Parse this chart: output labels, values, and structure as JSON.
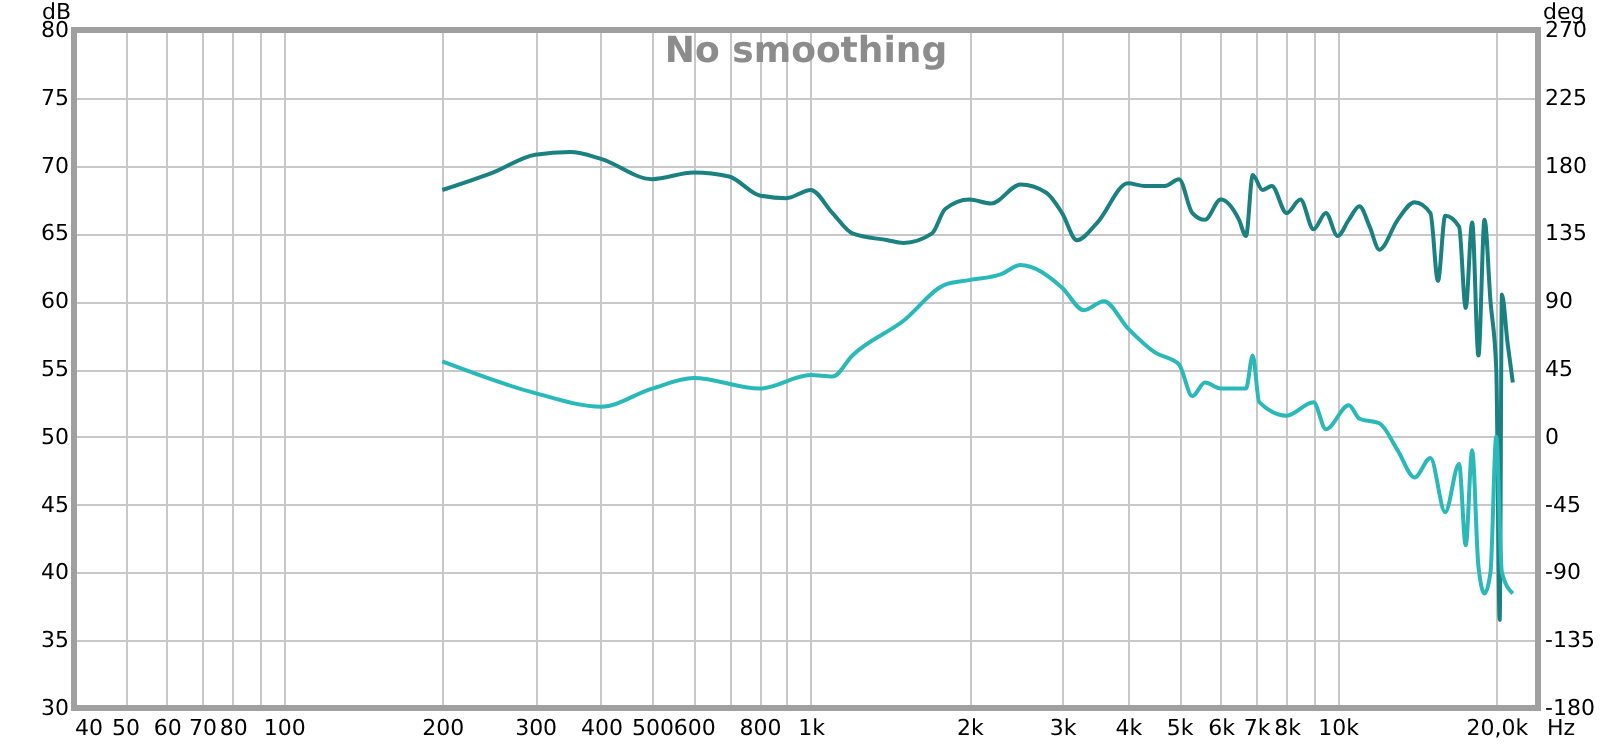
{
  "chart_data": {
    "type": "line",
    "title": "No smoothing",
    "xlabel": "Hz",
    "ylabel": "dB",
    "y2label": "deg",
    "log": "x",
    "grid": true,
    "marker": "none",
    "line_style": "solid",
    "xlim": [
      40,
      24000
    ],
    "xticks": [
      40,
      50,
      60,
      70,
      80,
      {
        "value": 90,
        "label": null
      },
      100,
      200,
      300,
      400,
      500,
      600,
      {
        "value": 700,
        "label": null
      },
      800,
      {
        "value": 900,
        "label": null
      },
      {
        "value": 1000,
        "label": "1k"
      },
      {
        "value": 2000,
        "label": "2k"
      },
      {
        "value": 3000,
        "label": "3k"
      },
      {
        "value": 4000,
        "label": "4k"
      },
      {
        "value": 5000,
        "label": "5k"
      },
      {
        "value": 6000,
        "label": "6k"
      },
      {
        "value": 7000,
        "label": "7k"
      },
      {
        "value": 8000,
        "label": "8k"
      },
      {
        "value": 9000,
        "label": null
      },
      {
        "value": 10000,
        "label": "10k"
      },
      {
        "value": 20000,
        "label": "20,0k"
      }
    ],
    "ylim": [
      30,
      80
    ],
    "yticks": [
      30,
      35,
      40,
      45,
      50,
      55,
      60,
      65,
      70,
      75,
      80
    ],
    "y2lim": [
      -180,
      270
    ],
    "y2ticks": [
      -180,
      -135,
      -90,
      -45,
      0,
      45,
      90,
      135,
      180,
      225,
      270
    ],
    "series": [
      {
        "color": "#1a8080",
        "x": [
          200,
          250,
          300,
          350,
          400,
          500,
          600,
          700,
          800,
          900,
          1000,
          1100,
          1200,
          1400,
          1500,
          1700,
          1800,
          2000,
          2200,
          2500,
          2800,
          3000,
          3200,
          3500,
          4000,
          4300,
          4700,
          5000,
          5300,
          5600,
          6000,
          6500,
          6700,
          6900,
          7200,
          7500,
          8000,
          8500,
          9000,
          9500,
          10000,
          10500,
          11000,
          11500,
          12000,
          13000,
          14000,
          15000,
          15500,
          16000,
          17000,
          17500,
          18000,
          18500,
          19000,
          19500,
          20000,
          20300,
          20500,
          21000,
          21500
        ],
        "values": [
          68.2,
          69.5,
          70.8,
          71.0,
          70.5,
          69.0,
          69.5,
          69.2,
          67.8,
          67.6,
          68.2,
          66.5,
          65.0,
          64.5,
          64.3,
          65.0,
          66.8,
          67.5,
          67.2,
          68.6,
          68.0,
          66.5,
          64.5,
          65.8,
          68.7,
          68.5,
          68.5,
          69.0,
          66.5,
          66.0,
          67.5,
          66.0,
          64.8,
          69.3,
          68.2,
          68.5,
          66.5,
          67.5,
          65.3,
          66.5,
          64.8,
          66.0,
          67.0,
          65.5,
          63.8,
          66.0,
          67.3,
          66.5,
          61.5,
          66.3,
          65.5,
          59.5,
          65.8,
          56.0,
          66.0,
          60.0,
          55.0,
          36.5,
          60.5,
          57.0,
          54.0
        ]
      },
      {
        "color": "#2ab8b8",
        "axis": "y2",
        "x": [
          200,
          300,
          400,
          500,
          600,
          800,
          1000,
          1100,
          1200,
          1500,
          1800,
          2000,
          2300,
          2500,
          3000,
          3300,
          3600,
          4000,
          4500,
          5000,
          5300,
          5600,
          6000,
          6700,
          6900,
          7100,
          8000,
          9000,
          9500,
          10500,
          11000,
          12000,
          13000,
          14000,
          15000,
          16000,
          17000,
          17500,
          18000,
          18500,
          19000,
          19500,
          20000,
          20500,
          21500
        ],
        "values": [
          50,
          29,
          20,
          32,
          39,
          32,
          41,
          40,
          54,
          77,
          101,
          104,
          108,
          114,
          99,
          84,
          90,
          72,
          56,
          48,
          27,
          36,
          32,
          32,
          54,
          23,
          14,
          23,
          5,
          21,
          12,
          9,
          -9,
          -27,
          -14,
          -50,
          -18,
          -72,
          -9,
          -86,
          -104,
          -90,
          0,
          -90,
          -104
        ]
      }
    ]
  }
}
